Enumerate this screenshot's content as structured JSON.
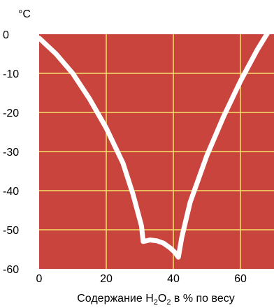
{
  "chart_data": {
    "type": "line",
    "y_unit": "°C",
    "xlabel_parts": [
      "Содержание H",
      "2",
      "O",
      "2",
      " в % по весу"
    ],
    "xlim": [
      0,
      70
    ],
    "ylim": [
      -60,
      0
    ],
    "x_ticks": [
      0,
      20,
      40,
      60
    ],
    "x_tick_labels": [
      "0",
      "20",
      "40",
      "60"
    ],
    "y_ticks": [
      0,
      -10,
      -20,
      -30,
      -40,
      -50,
      -60
    ],
    "y_tick_labels": [
      "0",
      "-10",
      "-20",
      "-30",
      "-40",
      "-50",
      "-60"
    ],
    "grid": true,
    "colors": {
      "plot_background": "#c8443c",
      "grid": "#f6e26a",
      "curve": "#ffffff"
    },
    "series": [
      {
        "x": [
          0,
          5,
          10,
          15,
          20,
          25,
          28,
          30.5,
          31,
          33,
          35,
          37,
          39,
          40.5,
          41.5,
          42.5,
          45,
          50,
          55,
          60,
          65,
          70
        ],
        "y": [
          -1,
          -5,
          -10,
          -16.5,
          -24,
          -33,
          -41,
          -49,
          -53,
          -52.6,
          -52.8,
          -53.4,
          -54.6,
          -55.8,
          -57,
          -52,
          -43,
          -31,
          -21,
          -12,
          -4,
          3
        ]
      }
    ]
  }
}
